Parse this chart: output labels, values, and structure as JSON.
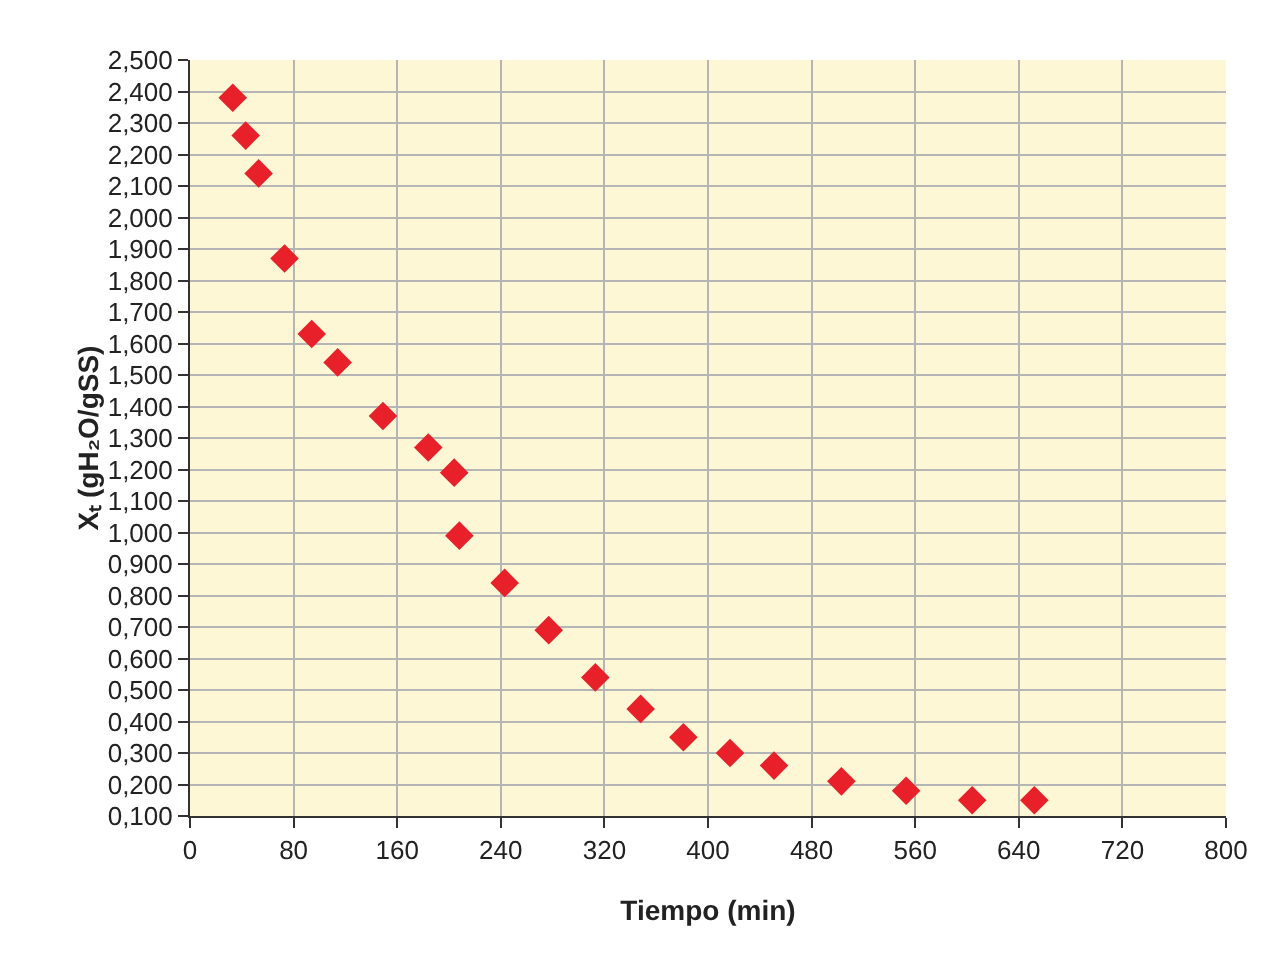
{
  "chart_data": {
    "type": "scatter",
    "xlabel": "Tiempo (min)",
    "ylabel": "Xₜ (gH₂O/gSS)",
    "x": [
      33,
      43,
      53,
      73,
      94,
      114,
      149,
      184,
      204,
      208,
      243,
      277,
      313,
      348,
      381,
      417,
      451,
      503,
      553,
      604,
      652
    ],
    "series": [
      {
        "color": "#e8202a",
        "values": [
          2.38,
          2.26,
          2.14,
          1.87,
          1.63,
          1.54,
          1.37,
          1.27,
          1.19,
          0.99,
          0.84,
          0.69,
          0.54,
          0.44,
          0.35,
          0.3,
          0.26,
          0.21,
          0.18,
          0.15,
          0.15
        ]
      }
    ],
    "marker": "diamond",
    "grid": true,
    "xlim": [
      0,
      800
    ],
    "xticks": [
      0,
      80,
      160,
      240,
      320,
      400,
      480,
      560,
      640,
      720,
      800
    ],
    "ylim": [
      0.1,
      2.5
    ],
    "yticks": [
      {
        "value": 0.1,
        "label": "0,100"
      },
      {
        "value": 0.2,
        "label": "0,200"
      },
      {
        "value": 0.3,
        "label": "0,300"
      },
      {
        "value": 0.4,
        "label": "0,400"
      },
      {
        "value": 0.5,
        "label": "0,500"
      },
      {
        "value": 0.6,
        "label": "0,600"
      },
      {
        "value": 0.7,
        "label": "0,700"
      },
      {
        "value": 0.8,
        "label": "0,800"
      },
      {
        "value": 0.9,
        "label": "0,900"
      },
      {
        "value": 1.0,
        "label": "1,000"
      },
      {
        "value": 1.1,
        "label": "1,100"
      },
      {
        "value": 1.2,
        "label": "1,200"
      },
      {
        "value": 1.3,
        "label": "1,300"
      },
      {
        "value": 1.4,
        "label": "1,400"
      },
      {
        "value": 1.5,
        "label": "1,500"
      },
      {
        "value": 1.6,
        "label": "1,600"
      },
      {
        "value": 1.7,
        "label": "1,700"
      },
      {
        "value": 1.8,
        "label": "1,800"
      },
      {
        "value": 1.9,
        "label": "1,900"
      },
      {
        "value": 2.0,
        "label": "2,000"
      },
      {
        "value": 2.1,
        "label": "2,100"
      },
      {
        "value": 2.2,
        "label": "2,200"
      },
      {
        "value": 2.3,
        "label": "2,300"
      },
      {
        "value": 2.4,
        "label": "2,400"
      },
      {
        "value": 2.5,
        "label": "2,500"
      }
    ]
  }
}
